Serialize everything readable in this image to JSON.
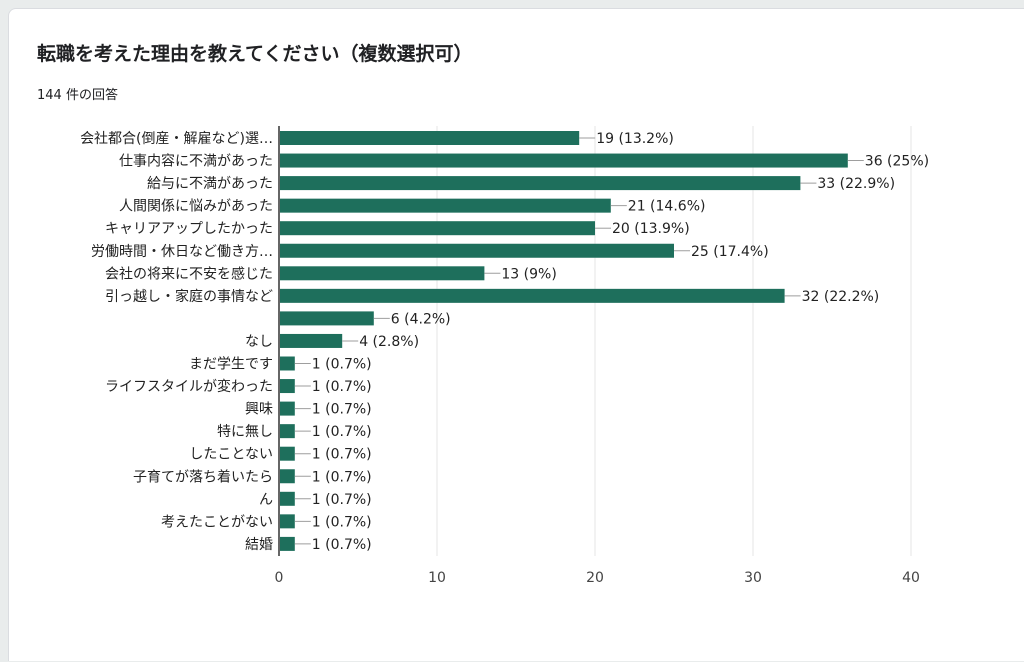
{
  "header": {
    "title": "転職を考えた理由を教えてください（複数選択可）",
    "response_count": "144 件の回答"
  },
  "colors": {
    "bar": "#1e6f5c",
    "grid": "#e6e6e6",
    "axis": "#333333",
    "connector": "#9e9e9e"
  },
  "chart_data": {
    "type": "bar",
    "orientation": "horizontal",
    "categories": [
      "会社都合(倒産・解雇など)選…",
      "仕事内容に不満があった",
      "給与に不満があった",
      "人間関係に悩みがあった",
      "キャリアアップしたかった",
      "労働時間・休日など働き方…",
      "会社の将来に不安を感じた",
      "引っ越し・家庭の事情など",
      "",
      "なし",
      "まだ学生です",
      "ライフスタイルが変わった",
      "興味",
      "特に無し",
      "したことない",
      "子育てが落ち着いたら",
      "ん",
      "考えたことがない",
      "結婚"
    ],
    "values": [
      19,
      36,
      33,
      21,
      20,
      25,
      13,
      32,
      6,
      4,
      1,
      1,
      1,
      1,
      1,
      1,
      1,
      1,
      1
    ],
    "value_labels": [
      "19 (13.2%)",
      "36 (25%)",
      "33 (22.9%)",
      "21 (14.6%)",
      "20 (13.9%)",
      "25 (17.4%)",
      "13 (9%)",
      "32 (22.2%)",
      "6 (4.2%)",
      "4 (2.8%)",
      "1 (0.7%)",
      "1 (0.7%)",
      "1 (0.7%)",
      "1 (0.7%)",
      "1 (0.7%)",
      "1 (0.7%)",
      "1 (0.7%)",
      "1 (0.7%)",
      "1 (0.7%)"
    ],
    "xlim": [
      0,
      40
    ],
    "xticks": [
      0,
      10,
      20,
      30,
      40
    ],
    "grid": true
  }
}
